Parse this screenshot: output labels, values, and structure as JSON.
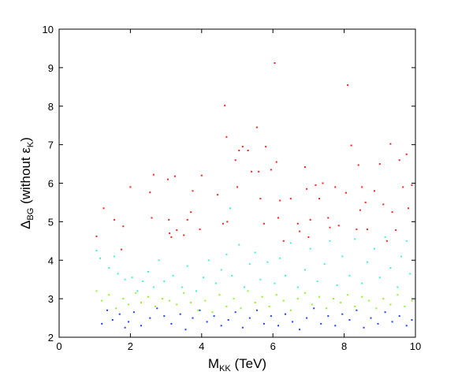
{
  "chart_data": {
    "type": "scatter",
    "title": "",
    "xlabel": {
      "main": "M",
      "sub": "KK",
      "rest": " (TeV)"
    },
    "ylabel": {
      "main": "Δ",
      "sub": "BG",
      "rest": " (without ε",
      "sub2": "K",
      "close": ")"
    },
    "xlim": [
      0,
      10
    ],
    "ylim": [
      2,
      10
    ],
    "x_ticks": [
      0,
      2,
      4,
      6,
      8,
      10
    ],
    "y_ticks": [
      2,
      3,
      4,
      5,
      6,
      7,
      8,
      9,
      10
    ],
    "grid": false,
    "legend": null,
    "series": [
      {
        "color": "#ff2020",
        "points": [
          [
            1.05,
            4.62
          ],
          [
            1.25,
            5.35
          ],
          [
            1.55,
            5.05
          ],
          [
            1.75,
            4.28
          ],
          [
            1.8,
            4.88
          ],
          [
            2.0,
            5.9
          ],
          [
            2.55,
            5.76
          ],
          [
            2.6,
            5.1
          ],
          [
            2.65,
            6.22
          ],
          [
            3.05,
            6.1
          ],
          [
            3.08,
            5.05
          ],
          [
            3.1,
            4.7
          ],
          [
            3.15,
            4.6
          ],
          [
            3.25,
            6.18
          ],
          [
            3.3,
            4.78
          ],
          [
            3.5,
            4.65
          ],
          [
            3.6,
            5.05
          ],
          [
            3.7,
            5.25
          ],
          [
            3.75,
            5.8
          ],
          [
            3.95,
            4.8
          ],
          [
            4.0,
            6.2
          ],
          [
            4.45,
            5.7
          ],
          [
            4.6,
            4.95
          ],
          [
            4.65,
            8.02
          ],
          [
            4.7,
            7.2
          ],
          [
            4.72,
            5.0
          ],
          [
            4.95,
            6.6
          ],
          [
            5.0,
            5.9
          ],
          [
            5.05,
            6.85
          ],
          [
            5.15,
            6.95
          ],
          [
            5.3,
            6.85
          ],
          [
            5.4,
            6.3
          ],
          [
            5.55,
            7.45
          ],
          [
            5.6,
            6.3
          ],
          [
            5.65,
            5.6
          ],
          [
            5.75,
            4.95
          ],
          [
            5.8,
            6.95
          ],
          [
            5.95,
            6.35
          ],
          [
            6.05,
            9.12
          ],
          [
            6.1,
            6.55
          ],
          [
            6.15,
            5.1
          ],
          [
            6.2,
            5.55
          ],
          [
            6.3,
            4.5
          ],
          [
            6.5,
            5.6
          ],
          [
            6.7,
            4.95
          ],
          [
            6.75,
            4.75
          ],
          [
            6.9,
            6.42
          ],
          [
            6.95,
            5.85
          ],
          [
            7.0,
            4.6
          ],
          [
            7.05,
            5.05
          ],
          [
            7.2,
            5.95
          ],
          [
            7.3,
            5.6
          ],
          [
            7.4,
            6.0
          ],
          [
            7.55,
            5.1
          ],
          [
            7.6,
            4.85
          ],
          [
            7.75,
            5.9
          ],
          [
            7.85,
            4.9
          ],
          [
            8.05,
            5.75
          ],
          [
            8.1,
            8.55
          ],
          [
            8.2,
            6.98
          ],
          [
            8.35,
            4.8
          ],
          [
            8.4,
            6.47
          ],
          [
            8.45,
            5.3
          ],
          [
            8.5,
            5.9
          ],
          [
            8.6,
            5.5
          ],
          [
            8.65,
            4.8
          ],
          [
            8.85,
            5.8
          ],
          [
            9.0,
            6.5
          ],
          [
            9.1,
            5.45
          ],
          [
            9.2,
            4.5
          ],
          [
            9.3,
            7.02
          ],
          [
            9.35,
            5.25
          ],
          [
            9.45,
            4.78
          ],
          [
            9.55,
            6.6
          ],
          [
            9.65,
            5.9
          ],
          [
            9.75,
            6.75
          ],
          [
            9.8,
            5.35
          ],
          [
            9.9,
            5.95
          ]
        ]
      },
      {
        "color": "#40f0d0",
        "points": [
          [
            1.05,
            4.25
          ],
          [
            1.15,
            4.05
          ],
          [
            1.4,
            3.8
          ],
          [
            1.55,
            4.1
          ],
          [
            1.65,
            3.65
          ],
          [
            1.85,
            3.5
          ],
          [
            2.05,
            3.55
          ],
          [
            2.2,
            3.2
          ],
          [
            2.35,
            3.45
          ],
          [
            2.5,
            3.7
          ],
          [
            2.65,
            3.3
          ],
          [
            2.8,
            4.0
          ],
          [
            2.95,
            3.45
          ],
          [
            3.2,
            3.6
          ],
          [
            3.45,
            3.3
          ],
          [
            3.6,
            3.85
          ],
          [
            3.85,
            3.2
          ],
          [
            4.05,
            3.55
          ],
          [
            4.2,
            4.0
          ],
          [
            4.4,
            3.4
          ],
          [
            4.55,
            3.75
          ],
          [
            4.7,
            4.15
          ],
          [
            4.8,
            5.35
          ],
          [
            4.85,
            3.6
          ],
          [
            5.05,
            4.4
          ],
          [
            5.2,
            3.3
          ],
          [
            5.35,
            3.9
          ],
          [
            5.5,
            4.2
          ],
          [
            5.65,
            3.5
          ],
          [
            5.85,
            3.95
          ],
          [
            6.05,
            3.4
          ],
          [
            6.2,
            4.05
          ],
          [
            6.35,
            3.6
          ],
          [
            6.5,
            4.45
          ],
          [
            6.7,
            3.3
          ],
          [
            6.9,
            3.75
          ],
          [
            7.05,
            4.3
          ],
          [
            7.25,
            3.45
          ],
          [
            7.45,
            3.9
          ],
          [
            7.6,
            4.5
          ],
          [
            7.8,
            3.35
          ],
          [
            7.95,
            4.1
          ],
          [
            8.15,
            3.6
          ],
          [
            8.3,
            4.55
          ],
          [
            8.5,
            3.4
          ],
          [
            8.65,
            3.95
          ],
          [
            8.85,
            4.3
          ],
          [
            9.0,
            3.55
          ],
          [
            9.15,
            4.6
          ],
          [
            9.3,
            3.8
          ],
          [
            9.5,
            3.3
          ],
          [
            9.6,
            4.1
          ],
          [
            9.75,
            4.5
          ],
          [
            9.85,
            3.65
          ]
        ]
      },
      {
        "color": "#90f030",
        "points": [
          [
            1.05,
            3.2
          ],
          [
            1.2,
            2.95
          ],
          [
            1.4,
            3.1
          ],
          [
            1.6,
            2.75
          ],
          [
            1.8,
            3.0
          ],
          [
            1.95,
            2.85
          ],
          [
            2.15,
            3.15
          ],
          [
            2.3,
            2.9
          ],
          [
            2.5,
            3.05
          ],
          [
            2.7,
            2.8
          ],
          [
            2.9,
            3.0
          ],
          [
            3.1,
            2.95
          ],
          [
            3.3,
            2.85
          ],
          [
            3.5,
            3.15
          ],
          [
            3.7,
            2.9
          ],
          [
            3.9,
            2.7
          ],
          [
            4.1,
            2.95
          ],
          [
            4.3,
            2.65
          ],
          [
            4.5,
            3.1
          ],
          [
            4.7,
            2.8
          ],
          [
            4.9,
            3.0
          ],
          [
            5.1,
            2.75
          ],
          [
            5.3,
            3.2
          ],
          [
            5.5,
            2.9
          ],
          [
            5.7,
            3.05
          ],
          [
            5.9,
            2.8
          ],
          [
            6.1,
            3.1
          ],
          [
            6.3,
            2.95
          ],
          [
            6.5,
            2.7
          ],
          [
            6.7,
            3.0
          ],
          [
            6.9,
            3.15
          ],
          [
            7.1,
            2.85
          ],
          [
            7.3,
            3.05
          ],
          [
            7.5,
            2.75
          ],
          [
            7.7,
            3.0
          ],
          [
            7.9,
            2.9
          ],
          [
            8.1,
            3.1
          ],
          [
            8.3,
            2.8
          ],
          [
            8.5,
            3.05
          ],
          [
            8.7,
            2.95
          ],
          [
            8.9,
            2.75
          ],
          [
            9.1,
            3.0
          ],
          [
            9.3,
            2.85
          ],
          [
            9.5,
            3.1
          ],
          [
            9.7,
            2.8
          ],
          [
            9.9,
            2.95
          ]
        ]
      },
      {
        "color": "#2040ff",
        "points": [
          [
            1.2,
            2.35
          ],
          [
            1.35,
            2.7
          ],
          [
            1.5,
            2.45
          ],
          [
            1.7,
            2.6
          ],
          [
            1.85,
            2.25
          ],
          [
            1.95,
            2.4
          ],
          [
            2.1,
            2.65
          ],
          [
            2.3,
            2.3
          ],
          [
            2.55,
            2.5
          ],
          [
            2.75,
            2.75
          ],
          [
            2.95,
            2.55
          ],
          [
            3.15,
            2.35
          ],
          [
            3.4,
            2.6
          ],
          [
            3.55,
            2.2
          ],
          [
            3.75,
            2.5
          ],
          [
            3.95,
            2.7
          ],
          [
            4.15,
            2.4
          ],
          [
            4.35,
            2.55
          ],
          [
            4.55,
            2.3
          ],
          [
            4.75,
            2.45
          ],
          [
            4.95,
            2.65
          ],
          [
            5.15,
            2.25
          ],
          [
            5.35,
            2.5
          ],
          [
            5.55,
            2.7
          ],
          [
            5.75,
            2.35
          ],
          [
            5.95,
            2.55
          ],
          [
            6.15,
            2.3
          ],
          [
            6.35,
            2.6
          ],
          [
            6.55,
            2.4
          ],
          [
            6.75,
            2.2
          ],
          [
            6.95,
            2.5
          ],
          [
            7.15,
            2.75
          ],
          [
            7.35,
            2.35
          ],
          [
            7.55,
            2.55
          ],
          [
            7.75,
            2.3
          ],
          [
            7.95,
            2.6
          ],
          [
            8.15,
            2.45
          ],
          [
            8.35,
            2.7
          ],
          [
            8.55,
            2.25
          ],
          [
            8.75,
            2.5
          ],
          [
            8.95,
            2.35
          ],
          [
            9.15,
            2.65
          ],
          [
            9.35,
            2.4
          ],
          [
            9.55,
            2.55
          ],
          [
            9.75,
            2.3
          ],
          [
            9.9,
            2.45
          ]
        ]
      }
    ]
  }
}
